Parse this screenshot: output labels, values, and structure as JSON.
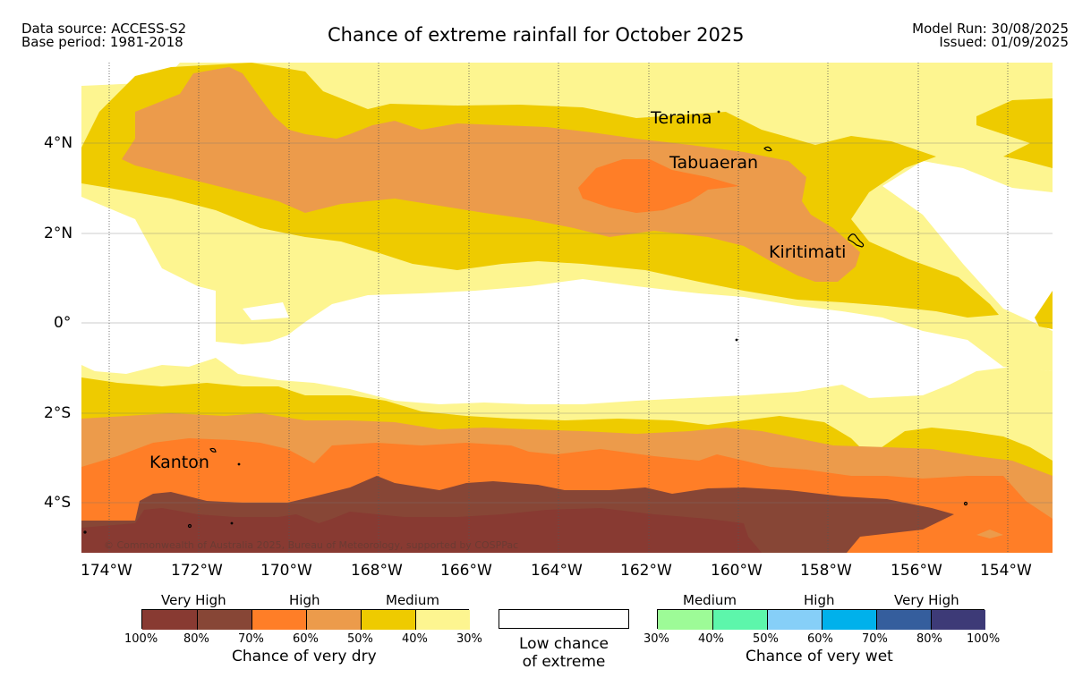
{
  "header": {
    "source": "Data source: ACCESS-S2",
    "base": "Base period: 1981-2018",
    "title": "Chance of extreme rainfall for October 2025",
    "model_run": "Model Run: 30/08/2025",
    "issued": "Issued: 01/09/2025"
  },
  "map": {
    "lat_ticks": [
      "4°N",
      "2°N",
      "0°",
      "2°S",
      "4°S"
    ],
    "lon_ticks": [
      "174°W",
      "172°W",
      "170°W",
      "168°W",
      "166°W",
      "164°W",
      "162°W",
      "160°W",
      "158°W",
      "156°W",
      "154°W"
    ],
    "places": {
      "teraina": "Teraina",
      "tabuaeran": "Tabuaeran",
      "kiritimati": "Kiritimati",
      "kanton": "Kanton"
    },
    "copyright": "© Commonwealth of Australia 2025, Bureau of Meteorology, supported by COSPPac",
    "colors": {
      "dry_very_high_1": "#883a32",
      "dry_very_high_2": "#874636",
      "dry_high_1": "#ff7e27",
      "dry_high_2": "#ec9b4b",
      "dry_medium_1": "#eecb00",
      "dry_medium_2": "#fdf590"
    }
  },
  "legend": {
    "dry": {
      "groups": [
        "Very High",
        "High",
        "Medium"
      ],
      "ticks": [
        "100%",
        "80%",
        "70%",
        "60%",
        "50%",
        "40%",
        "30%"
      ],
      "caption": "Chance of very dry",
      "colors": [
        "#883a32",
        "#874636",
        "#ff7e27",
        "#ec9b4b",
        "#eecb00",
        "#fdf590"
      ]
    },
    "neutral": {
      "line1": "Low chance",
      "line2": "of extreme"
    },
    "wet": {
      "groups": [
        "Medium",
        "High",
        "Very High"
      ],
      "ticks": [
        "30%",
        "40%",
        "50%",
        "60%",
        "70%",
        "80%",
        "100%"
      ],
      "caption": "Chance of very wet",
      "colors": [
        "#9dfb97",
        "#5df6ab",
        "#86cff8",
        "#00b1eb",
        "#355e9d",
        "#3d3a77"
      ]
    }
  }
}
